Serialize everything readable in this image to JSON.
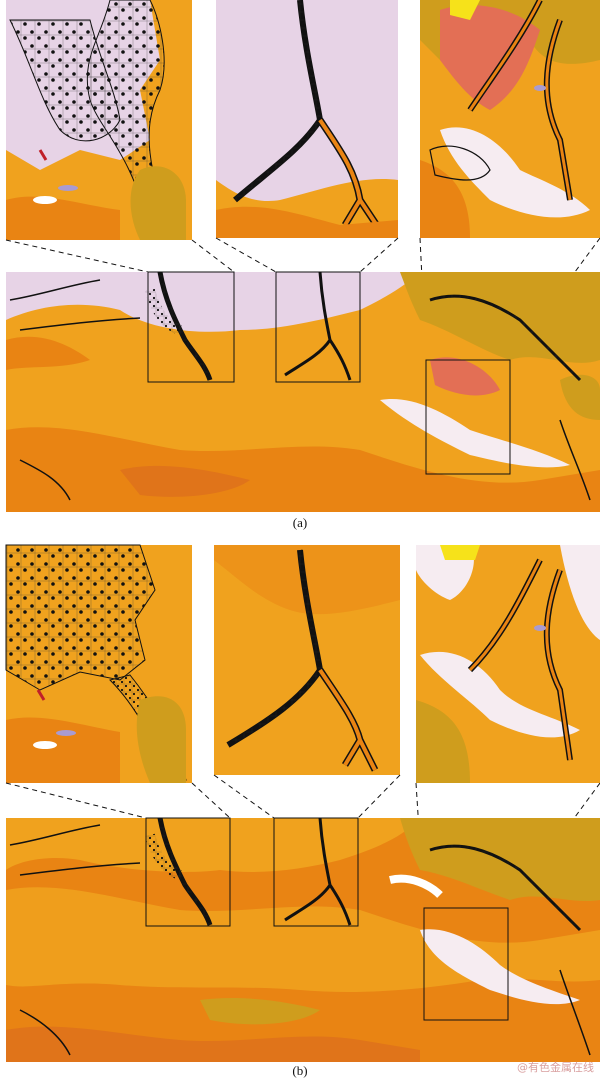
{
  "figure": {
    "panels": [
      {
        "label": "(a)"
      },
      {
        "label": "(b)"
      }
    ],
    "watermark": "@有色金属在线"
  },
  "colors": {
    "base_orange": "#f0a21e",
    "dark_orange": "#e98413",
    "deep_orange": "#e0741a",
    "olive": "#cf9d1d",
    "pale_lilac": "#e7d3e6",
    "pale_pink": "#f6ecf1",
    "salmon": "#e36f55",
    "yellow": "#f6e21a",
    "purple": "#a99bd1",
    "white": "#ffffff",
    "dot": "#111111"
  }
}
